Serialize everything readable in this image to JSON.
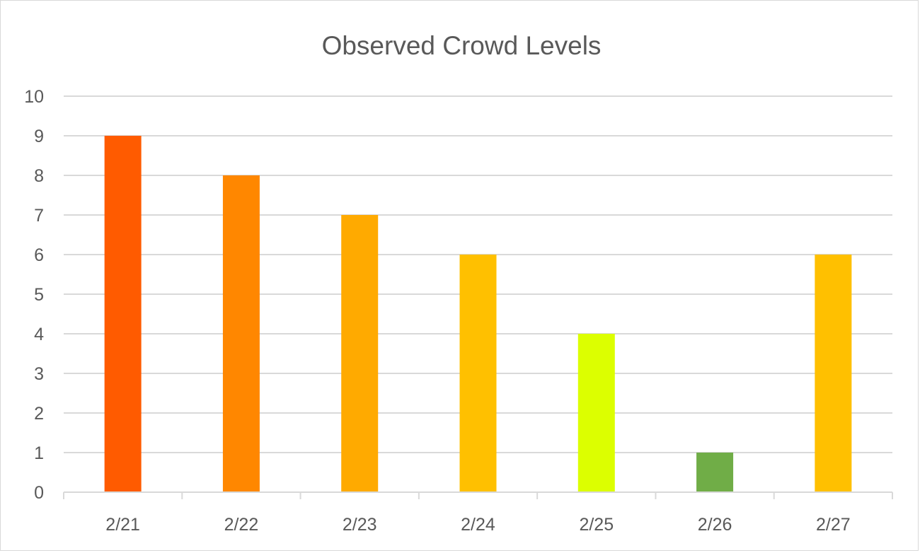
{
  "chart_data": {
    "type": "bar",
    "title": "Observed Crowd Levels",
    "xlabel": "",
    "ylabel": "",
    "categories": [
      "2/21",
      "2/22",
      "2/23",
      "2/24",
      "2/25",
      "2/26",
      "2/27"
    ],
    "values": [
      9,
      8,
      7,
      6,
      4,
      1,
      6
    ],
    "bar_colors": [
      "#ff5b00",
      "#ff8700",
      "#ffaa00",
      "#ffc000",
      "#dcff00",
      "#70ad47",
      "#ffc000"
    ],
    "ylim": [
      0,
      10
    ],
    "yticks": [
      0,
      1,
      2,
      3,
      4,
      5,
      6,
      7,
      8,
      9,
      10
    ],
    "grid": true,
    "legend": "none"
  }
}
